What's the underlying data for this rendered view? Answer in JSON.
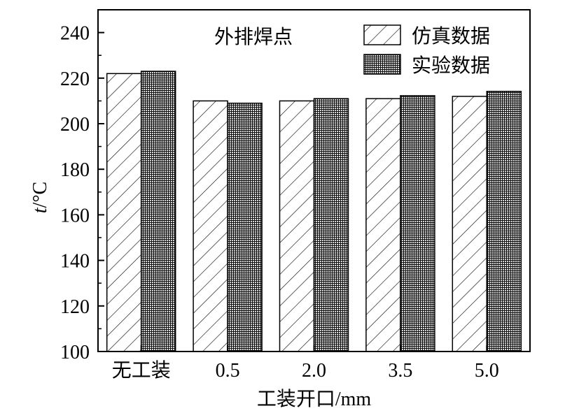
{
  "chart_data": {
    "type": "bar",
    "title": "外排焊点",
    "xlabel": "工装开口/mm",
    "ylabel_italic": "t",
    "ylabel_unit": "/°C",
    "categories": [
      "无工装",
      "0.5",
      "2.0",
      "3.5",
      "5.0"
    ],
    "series": [
      {
        "name": "仿真数据",
        "values": [
          222,
          210,
          210,
          211,
          212
        ],
        "pattern": "diagonal-hatch"
      },
      {
        "name": "实验数据",
        "values": [
          223,
          209,
          211,
          212.3,
          214.2
        ],
        "pattern": "dense-grid"
      }
    ],
    "ylim": [
      100,
      250
    ],
    "yticks": [
      100,
      120,
      140,
      160,
      180,
      200,
      220,
      240
    ],
    "legend_position": "top-right",
    "grid": false
  }
}
